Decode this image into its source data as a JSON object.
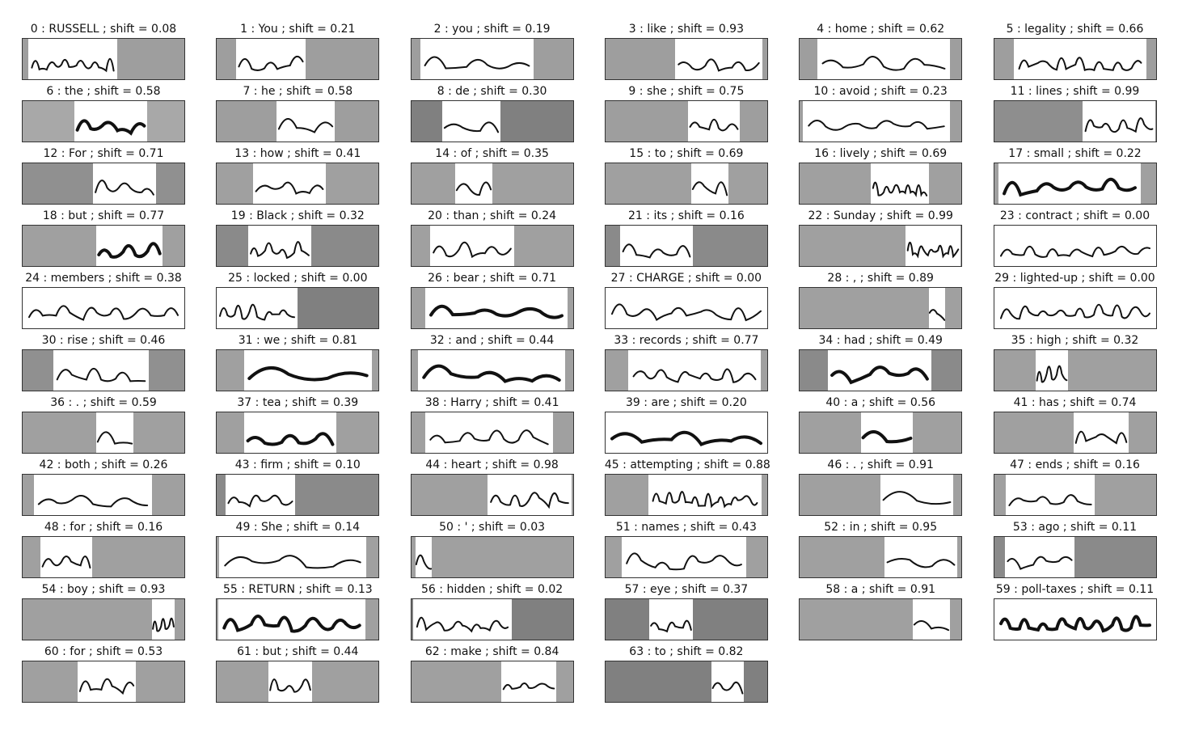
{
  "samples": [
    {
      "index": 0,
      "word": "RUSSELL",
      "shift": "0.08",
      "ink_fraction": 0.55,
      "pad": "#9e9e9e",
      "dark": false
    },
    {
      "index": 1,
      "word": "You",
      "shift": "0.21",
      "ink_fraction": 0.43,
      "pad": "#9e9e9e",
      "dark": false
    },
    {
      "index": 2,
      "word": "you",
      "shift": "0.19",
      "ink_fraction": 0.7,
      "pad": "#9e9e9e",
      "dark": false
    },
    {
      "index": 3,
      "word": "like",
      "shift": "0.93",
      "ink_fraction": 0.54,
      "pad": "#9e9e9e",
      "dark": false
    },
    {
      "index": 4,
      "word": "home",
      "shift": "0.62",
      "ink_fraction": 0.82,
      "pad": "#9e9e9e",
      "dark": false
    },
    {
      "index": 5,
      "word": "legality",
      "shift": "0.66",
      "ink_fraction": 0.82,
      "pad": "#9e9e9e",
      "dark": false
    },
    {
      "index": 6,
      "word": "the",
      "shift": "0.58",
      "ink_fraction": 0.45,
      "pad": "#a8a8a8",
      "dark": true
    },
    {
      "index": 7,
      "word": "he",
      "shift": "0.58",
      "ink_fraction": 0.36,
      "pad": "#9e9e9e",
      "dark": false
    },
    {
      "index": 8,
      "word": "de",
      "shift": "0.30",
      "ink_fraction": 0.36,
      "pad": "#808080",
      "dark": false
    },
    {
      "index": 9,
      "word": "she",
      "shift": "0.75",
      "ink_fraction": 0.32,
      "pad": "#9e9e9e",
      "dark": false
    },
    {
      "index": 10,
      "word": "avoid",
      "shift": "0.23",
      "ink_fraction": 0.91,
      "pad": "#9e9e9e",
      "dark": false
    },
    {
      "index": 11,
      "word": "lines",
      "shift": "0.99",
      "ink_fraction": 0.45,
      "pad": "#8e8e8e",
      "dark": false
    },
    {
      "index": 12,
      "word": "For",
      "shift": "0.71",
      "ink_fraction": 0.39,
      "pad": "#909090",
      "dark": false
    },
    {
      "index": 13,
      "word": "how",
      "shift": "0.41",
      "ink_fraction": 0.45,
      "pad": "#a0a0a0",
      "dark": false
    },
    {
      "index": 14,
      "word": "of",
      "shift": "0.35",
      "ink_fraction": 0.23,
      "pad": "#a0a0a0",
      "dark": false
    },
    {
      "index": 15,
      "word": "to",
      "shift": "0.69",
      "ink_fraction": 0.23,
      "pad": "#a0a0a0",
      "dark": false
    },
    {
      "index": 16,
      "word": "lively",
      "shift": "0.69",
      "ink_fraction": 0.36,
      "pad": "#a0a0a0",
      "dark": false
    },
    {
      "index": 17,
      "word": "small",
      "shift": "0.22",
      "ink_fraction": 0.88,
      "pad": "#a0a0a0",
      "dark": true
    },
    {
      "index": 18,
      "word": "but",
      "shift": "0.77",
      "ink_fraction": 0.41,
      "pad": "#a0a0a0",
      "dark": true
    },
    {
      "index": 19,
      "word": "Black",
      "shift": "0.32",
      "ink_fraction": 0.39,
      "pad": "#8a8a8a",
      "dark": false
    },
    {
      "index": 20,
      "word": "than",
      "shift": "0.24",
      "ink_fraction": 0.52,
      "pad": "#a0a0a0",
      "dark": false
    },
    {
      "index": 21,
      "word": "its",
      "shift": "0.16",
      "ink_fraction": 0.45,
      "pad": "#8a8a8a",
      "dark": false
    },
    {
      "index": 22,
      "word": "Sunday",
      "shift": "0.99",
      "ink_fraction": 0.34,
      "pad": "#a0a0a0",
      "dark": false
    },
    {
      "index": 23,
      "word": "contract",
      "shift": "0.00",
      "ink_fraction": 1.0,
      "pad": "#a0a0a0",
      "dark": false
    },
    {
      "index": 24,
      "word": "members",
      "shift": "0.38",
      "ink_fraction": 1.0,
      "pad": "#a0a0a0",
      "dark": false
    },
    {
      "index": 25,
      "word": "locked",
      "shift": "0.00",
      "ink_fraction": 0.5,
      "pad": "#808080",
      "dark": false
    },
    {
      "index": 26,
      "word": "bear",
      "shift": "0.71",
      "ink_fraction": 0.88,
      "pad": "#a0a0a0",
      "dark": true
    },
    {
      "index": 27,
      "word": "CHARGE",
      "shift": "0.00",
      "ink_fraction": 1.0,
      "pad": "#a0a0a0",
      "dark": false
    },
    {
      "index": 28,
      "word": ",",
      "shift": "0.89",
      "ink_fraction": 0.1,
      "pad": "#a0a0a0",
      "dark": false
    },
    {
      "index": 29,
      "word": "lighted-up",
      "shift": "0.00",
      "ink_fraction": 1.0,
      "pad": "#a0a0a0",
      "dark": false
    },
    {
      "index": 30,
      "word": "rise",
      "shift": "0.46",
      "ink_fraction": 0.59,
      "pad": "#909090",
      "dark": false
    },
    {
      "index": 31,
      "word": "we",
      "shift": "0.81",
      "ink_fraction": 0.79,
      "pad": "#a0a0a0",
      "dark": true
    },
    {
      "index": 32,
      "word": "and",
      "shift": "0.44",
      "ink_fraction": 0.91,
      "pad": "#a0a0a0",
      "dark": true
    },
    {
      "index": 33,
      "word": "records",
      "shift": "0.77",
      "ink_fraction": 0.82,
      "pad": "#a0a0a0",
      "dark": false
    },
    {
      "index": 34,
      "word": "had",
      "shift": "0.49",
      "ink_fraction": 0.64,
      "pad": "#8a8a8a",
      "dark": true
    },
    {
      "index": 35,
      "word": "high",
      "shift": "0.32",
      "ink_fraction": 0.2,
      "pad": "#a0a0a0",
      "dark": false
    },
    {
      "index": 36,
      "word": ".",
      "shift": "0.59",
      "ink_fraction": 0.23,
      "pad": "#a0a0a0",
      "dark": false
    },
    {
      "index": 37,
      "word": "tea",
      "shift": "0.39",
      "ink_fraction": 0.57,
      "pad": "#a0a0a0",
      "dark": true
    },
    {
      "index": 38,
      "word": "Harry",
      "shift": "0.41",
      "ink_fraction": 0.79,
      "pad": "#a0a0a0",
      "dark": false
    },
    {
      "index": 39,
      "word": "are",
      "shift": "0.20",
      "ink_fraction": 1.0,
      "pad": "#a0a0a0",
      "dark": true
    },
    {
      "index": 40,
      "word": "a",
      "shift": "0.56",
      "ink_fraction": 0.32,
      "pad": "#a0a0a0",
      "dark": true
    },
    {
      "index": 41,
      "word": "has",
      "shift": "0.74",
      "ink_fraction": 0.34,
      "pad": "#a0a0a0",
      "dark": false
    },
    {
      "index": 42,
      "word": "both",
      "shift": "0.26",
      "ink_fraction": 0.73,
      "pad": "#a0a0a0",
      "dark": false
    },
    {
      "index": 43,
      "word": "firm",
      "shift": "0.10",
      "ink_fraction": 0.43,
      "pad": "#8a8a8a",
      "dark": false
    },
    {
      "index": 44,
      "word": "heart",
      "shift": "0.98",
      "ink_fraction": 0.52,
      "pad": "#a0a0a0",
      "dark": false
    },
    {
      "index": 45,
      "word": "attempting",
      "shift": "0.88",
      "ink_fraction": 0.7,
      "pad": "#a0a0a0",
      "dark": false
    },
    {
      "index": 46,
      "word": ".",
      "shift": "0.91",
      "ink_fraction": 0.45,
      "pad": "#a0a0a0",
      "dark": false
    },
    {
      "index": 47,
      "word": "ends",
      "shift": "0.16",
      "ink_fraction": 0.55,
      "pad": "#a0a0a0",
      "dark": false
    },
    {
      "index": 48,
      "word": "for",
      "shift": "0.16",
      "ink_fraction": 0.32,
      "pad": "#a0a0a0",
      "dark": false
    },
    {
      "index": 49,
      "word": "She",
      "shift": "0.14",
      "ink_fraction": 0.91,
      "pad": "#a0a0a0",
      "dark": false
    },
    {
      "index": 50,
      "word": "'",
      "shift": "0.03",
      "ink_fraction": 0.1,
      "pad": "#a0a0a0",
      "dark": false
    },
    {
      "index": 51,
      "word": "names",
      "shift": "0.43",
      "ink_fraction": 0.77,
      "pad": "#a0a0a0",
      "dark": false
    },
    {
      "index": 52,
      "word": "in",
      "shift": "0.95",
      "ink_fraction": 0.45,
      "pad": "#a0a0a0",
      "dark": false
    },
    {
      "index": 53,
      "word": "ago",
      "shift": "0.11",
      "ink_fraction": 0.43,
      "pad": "#8a8a8a",
      "dark": false
    },
    {
      "index": 54,
      "word": "boy",
      "shift": "0.93",
      "ink_fraction": 0.14,
      "pad": "#a0a0a0",
      "dark": false
    },
    {
      "index": 55,
      "word": "RETURN",
      "shift": "0.13",
      "ink_fraction": 0.91,
      "pad": "#a0a0a0",
      "dark": true
    },
    {
      "index": 56,
      "word": "hidden",
      "shift": "0.02",
      "ink_fraction": 0.61,
      "pad": "#808080",
      "dark": false
    },
    {
      "index": 57,
      "word": "eye",
      "shift": "0.37",
      "ink_fraction": 0.27,
      "pad": "#808080",
      "dark": false
    },
    {
      "index": 58,
      "word": "a",
      "shift": "0.91",
      "ink_fraction": 0.23,
      "pad": "#a0a0a0",
      "dark": false
    },
    {
      "index": 59,
      "word": "poll-taxes",
      "shift": "0.11",
      "ink_fraction": 1.0,
      "pad": "#a0a0a0",
      "dark": true
    },
    {
      "index": 60,
      "word": "for",
      "shift": "0.53",
      "ink_fraction": 0.36,
      "pad": "#a0a0a0",
      "dark": false
    },
    {
      "index": 61,
      "word": "but",
      "shift": "0.44",
      "ink_fraction": 0.27,
      "pad": "#a0a0a0",
      "dark": false
    },
    {
      "index": 62,
      "word": "make",
      "shift": "0.84",
      "ink_fraction": 0.34,
      "pad": "#a0a0a0",
      "dark": false
    },
    {
      "index": 63,
      "word": "to",
      "shift": "0.82",
      "ink_fraction": 0.2,
      "pad": "#808080",
      "dark": false
    }
  ],
  "labels": {
    "separator": " : ",
    "shift_prefix": " ; shift = "
  }
}
